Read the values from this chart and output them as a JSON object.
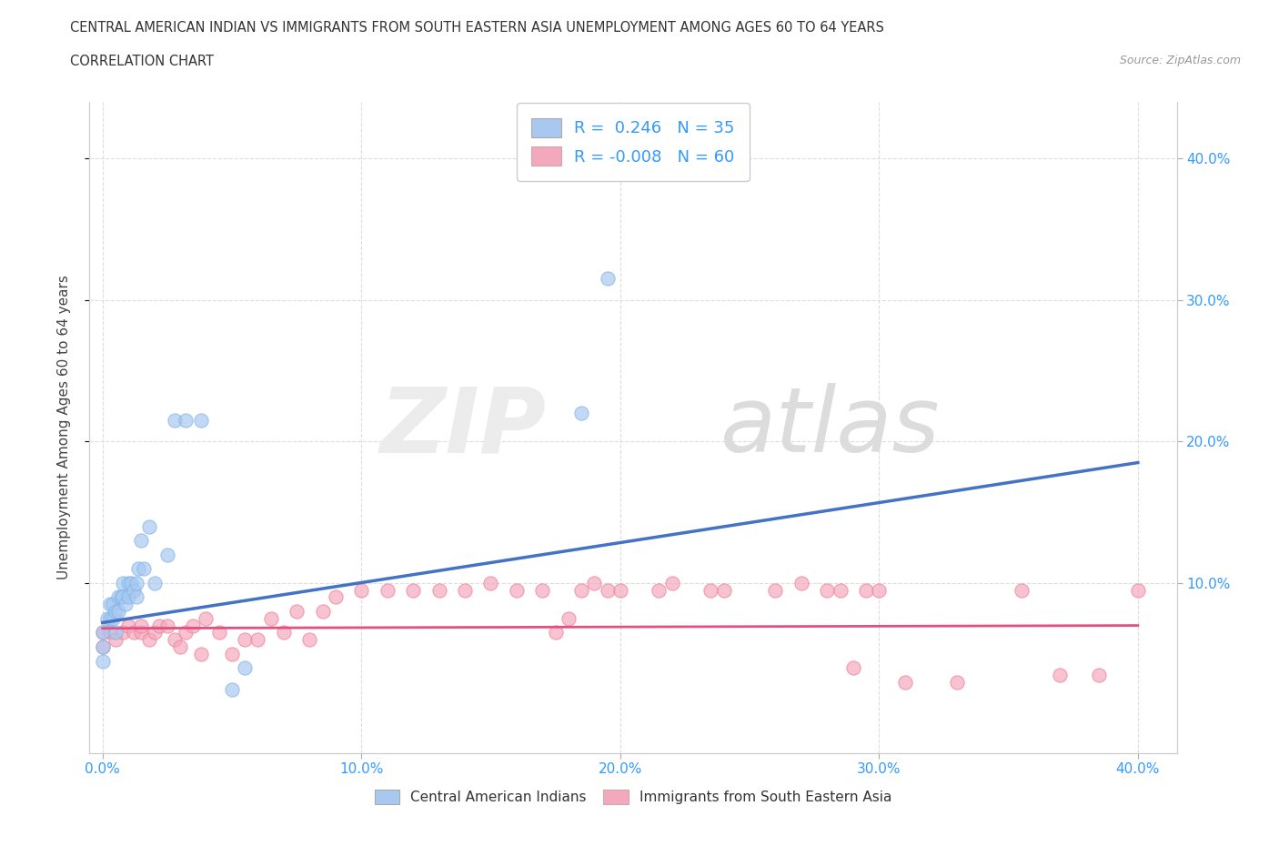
{
  "title_line1": "CENTRAL AMERICAN INDIAN VS IMMIGRANTS FROM SOUTH EASTERN ASIA UNEMPLOYMENT AMONG AGES 60 TO 64 YEARS",
  "title_line2": "CORRELATION CHART",
  "source_text": "Source: ZipAtlas.com",
  "ylabel": "Unemployment Among Ages 60 to 64 years",
  "xlim": [
    -0.005,
    0.415
  ],
  "ylim": [
    -0.02,
    0.44
  ],
  "xtick_vals": [
    0.0,
    0.1,
    0.2,
    0.3,
    0.4
  ],
  "ytick_vals": [
    0.1,
    0.2,
    0.3,
    0.4
  ],
  "blue_R": 0.246,
  "blue_N": 35,
  "pink_R": -0.008,
  "pink_N": 60,
  "blue_color": "#A8C8F0",
  "pink_color": "#F4A8BE",
  "blue_edge_color": "#7EB5E8",
  "pink_edge_color": "#F08090",
  "blue_line_color": "#4472C4",
  "pink_line_color": "#E05080",
  "blue_line_start_y": 0.072,
  "blue_line_end_y": 0.185,
  "pink_line_start_y": 0.068,
  "pink_line_end_y": 0.07,
  "blue_scatter_x": [
    0.0,
    0.0,
    0.0,
    0.002,
    0.003,
    0.003,
    0.004,
    0.004,
    0.005,
    0.005,
    0.006,
    0.006,
    0.007,
    0.008,
    0.008,
    0.009,
    0.01,
    0.01,
    0.011,
    0.012,
    0.013,
    0.013,
    0.014,
    0.015,
    0.016,
    0.018,
    0.02,
    0.025,
    0.028,
    0.032,
    0.038,
    0.05,
    0.055,
    0.185,
    0.195
  ],
  "blue_scatter_y": [
    0.045,
    0.055,
    0.065,
    0.075,
    0.075,
    0.085,
    0.075,
    0.085,
    0.065,
    0.08,
    0.08,
    0.09,
    0.09,
    0.09,
    0.1,
    0.085,
    0.09,
    0.1,
    0.1,
    0.095,
    0.09,
    0.1,
    0.11,
    0.13,
    0.11,
    0.14,
    0.1,
    0.12,
    0.215,
    0.215,
    0.215,
    0.025,
    0.04,
    0.22,
    0.315
  ],
  "pink_scatter_x": [
    0.0,
    0.0,
    0.003,
    0.005,
    0.008,
    0.01,
    0.012,
    0.015,
    0.015,
    0.018,
    0.02,
    0.022,
    0.025,
    0.028,
    0.03,
    0.032,
    0.035,
    0.038,
    0.04,
    0.045,
    0.05,
    0.055,
    0.06,
    0.065,
    0.07,
    0.075,
    0.08,
    0.085,
    0.09,
    0.1,
    0.11,
    0.12,
    0.13,
    0.14,
    0.15,
    0.16,
    0.17,
    0.175,
    0.18,
    0.185,
    0.19,
    0.195,
    0.2,
    0.215,
    0.22,
    0.235,
    0.24,
    0.26,
    0.27,
    0.28,
    0.285,
    0.29,
    0.295,
    0.3,
    0.31,
    0.33,
    0.355,
    0.37,
    0.385,
    0.4
  ],
  "pink_scatter_y": [
    0.055,
    0.065,
    0.065,
    0.06,
    0.065,
    0.07,
    0.065,
    0.065,
    0.07,
    0.06,
    0.065,
    0.07,
    0.07,
    0.06,
    0.055,
    0.065,
    0.07,
    0.05,
    0.075,
    0.065,
    0.05,
    0.06,
    0.06,
    0.075,
    0.065,
    0.08,
    0.06,
    0.08,
    0.09,
    0.095,
    0.095,
    0.095,
    0.095,
    0.095,
    0.1,
    0.095,
    0.095,
    0.065,
    0.075,
    0.095,
    0.1,
    0.095,
    0.095,
    0.095,
    0.1,
    0.095,
    0.095,
    0.095,
    0.1,
    0.095,
    0.095,
    0.04,
    0.095,
    0.095,
    0.03,
    0.03,
    0.095,
    0.035,
    0.035,
    0.095
  ],
  "grid_color": "#DDDDDD",
  "background_color": "#FFFFFF",
  "tick_color": "#3399FF",
  "legend_text_color": "#3399FF"
}
